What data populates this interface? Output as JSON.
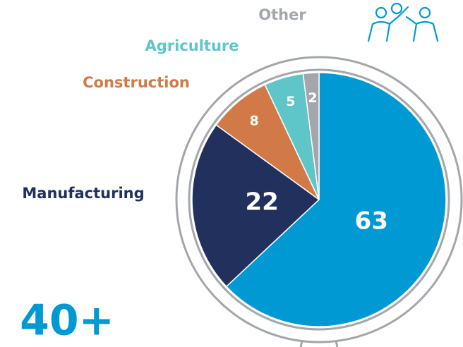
{
  "chart_data": {
    "type": "pie",
    "categories": [
      null,
      "Manufacturing",
      "Construction",
      "Agriculture",
      "Other"
    ],
    "values": [
      63,
      22,
      8,
      5,
      2
    ],
    "colors": [
      "#0099d4",
      "#22305e",
      "#d27a47",
      "#5ec6c8",
      "#a3a6ab"
    ],
    "annotation": "40+"
  }
}
